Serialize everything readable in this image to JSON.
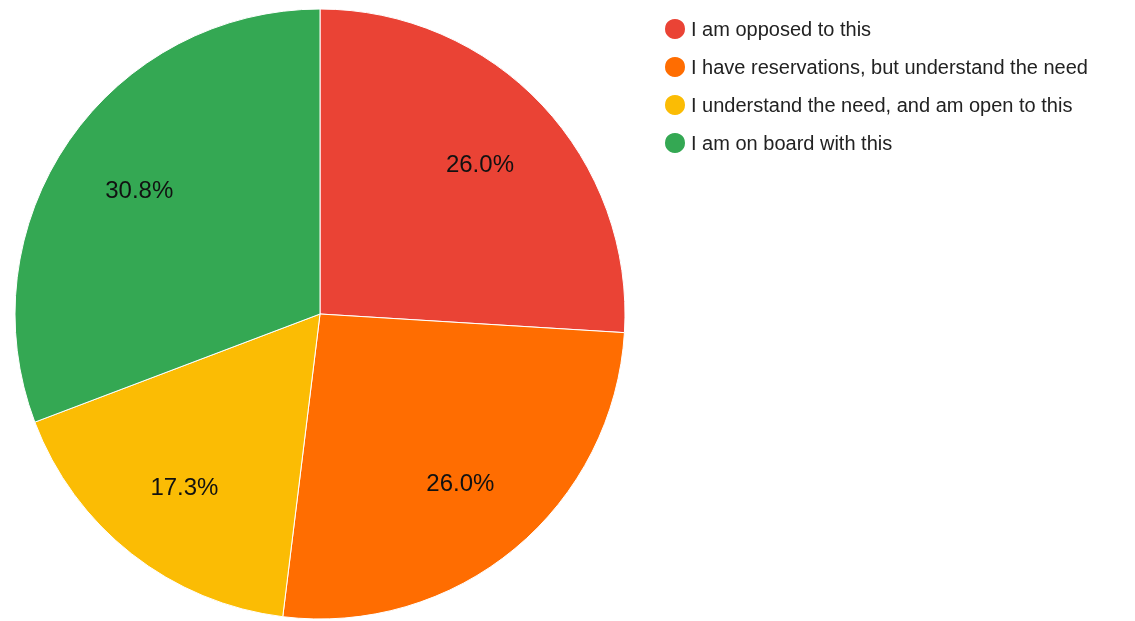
{
  "chart_data": {
    "type": "pie",
    "categories": [
      "I am opposed to this",
      "I have reservations, but understand the need",
      "I understand the need, and am open to this",
      "I am on board with this"
    ],
    "values": [
      26.0,
      26.0,
      17.3,
      30.8
    ],
    "colors": [
      "#ea4335",
      "#ff6d01",
      "#fbbc04",
      "#34a853"
    ],
    "value_labels": [
      "26.0%",
      "26.0%",
      "17.3%",
      "30.8%"
    ],
    "legend": "top right"
  }
}
